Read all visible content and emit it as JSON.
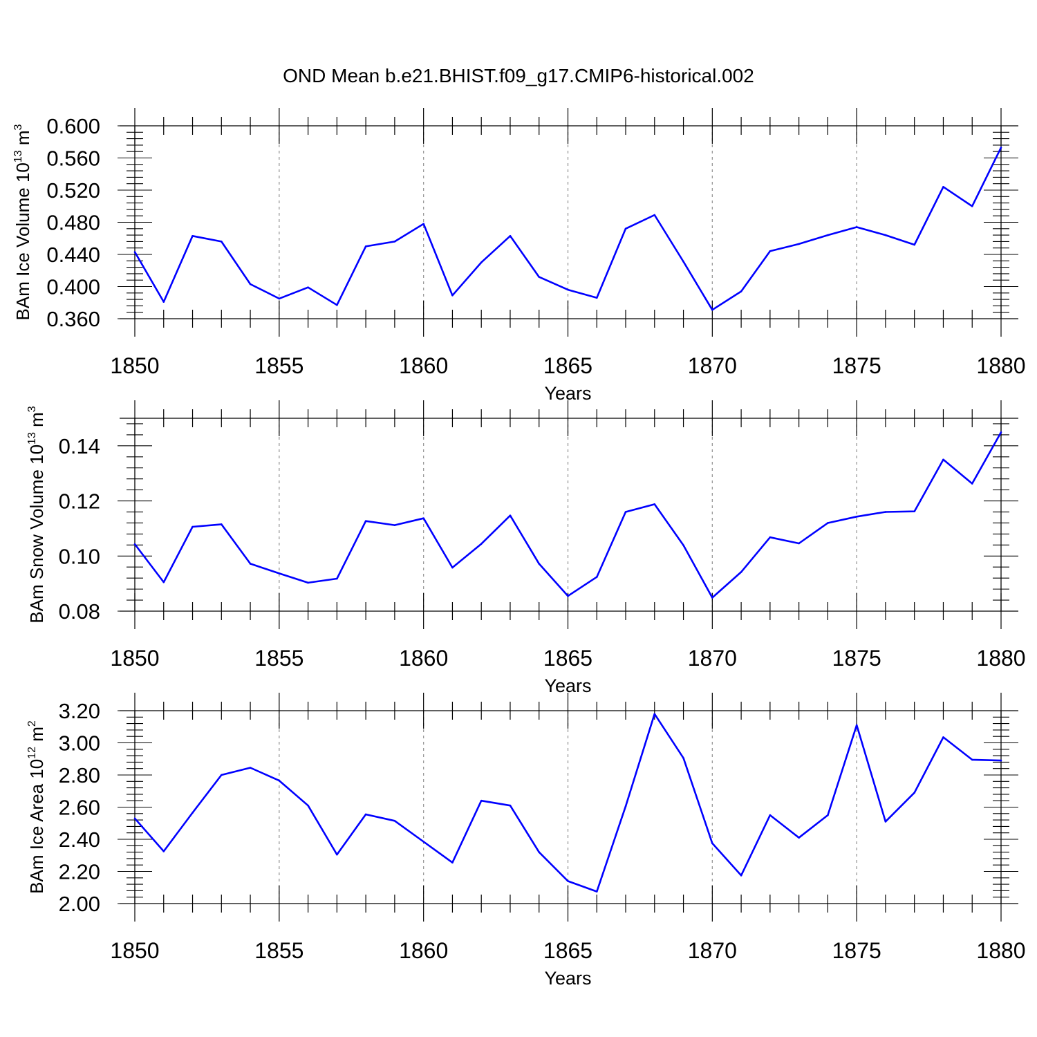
{
  "title": "OND Mean b.e21.BHIST.f09_g17.CMIP6-historical.002",
  "colors": {
    "line": "#0000ff",
    "axis": "#000000",
    "grid": "#999999",
    "background": "#ffffff"
  },
  "chart_data": [
    {
      "type": "line",
      "ylabel": "BAm Ice Volume 10",
      "ylabel_exp": "13",
      "ylabel_unit": " m",
      "ylabel_unit_exp": "3",
      "xlabel": "Years",
      "xlim": [
        1850,
        1880
      ],
      "ylim": [
        0.36,
        0.6
      ],
      "yticks": [
        0.36,
        0.4,
        0.44,
        0.48,
        0.52,
        0.56,
        0.6
      ],
      "ytick_labels": [
        "0.360",
        "0.400",
        "0.440",
        "0.480",
        "0.520",
        "0.560",
        "0.600"
      ],
      "xticks": [
        1850,
        1855,
        1860,
        1865,
        1870,
        1875,
        1880
      ],
      "xtick_labels": [
        "1850",
        "1855",
        "1860",
        "1865",
        "1870",
        "1875",
        "1880"
      ],
      "grid_x": [
        1855,
        1860,
        1865,
        1870,
        1875
      ],
      "x": [
        1850,
        1851,
        1852,
        1853,
        1854,
        1855,
        1856,
        1857,
        1858,
        1859,
        1860,
        1861,
        1862,
        1863,
        1864,
        1865,
        1866,
        1867,
        1868,
        1869,
        1870,
        1871,
        1872,
        1873,
        1874,
        1875,
        1876,
        1877,
        1878,
        1879,
        1880
      ],
      "series": [
        {
          "name": "BAm Ice Volume",
          "values": [
            0.443,
            0.381,
            0.463,
            0.456,
            0.403,
            0.385,
            0.399,
            0.377,
            0.45,
            0.456,
            0.478,
            0.389,
            0.43,
            0.463,
            0.412,
            0.396,
            0.386,
            0.472,
            0.489,
            0.431,
            0.371,
            0.394,
            0.444,
            0.453,
            0.464,
            0.474,
            0.464,
            0.452,
            0.524,
            0.5,
            0.573
          ]
        }
      ]
    },
    {
      "type": "line",
      "ylabel": "BAm Snow Volume 10",
      "ylabel_exp": "13",
      "ylabel_unit": " m",
      "ylabel_unit_exp": "3",
      "xlabel": "Years",
      "xlim": [
        1850,
        1880
      ],
      "ylim": [
        0.08,
        0.15
      ],
      "yticks": [
        0.08,
        0.1,
        0.12,
        0.14
      ],
      "ytick_labels": [
        "0.08",
        "0.10",
        "0.12",
        "0.14"
      ],
      "xticks": [
        1850,
        1855,
        1860,
        1865,
        1870,
        1875,
        1880
      ],
      "xtick_labels": [
        "1850",
        "1855",
        "1860",
        "1865",
        "1870",
        "1875",
        "1880"
      ],
      "grid_x": [
        1855,
        1860,
        1865,
        1870,
        1875
      ],
      "x": [
        1850,
        1851,
        1852,
        1853,
        1854,
        1855,
        1856,
        1857,
        1858,
        1859,
        1860,
        1861,
        1862,
        1863,
        1864,
        1865,
        1866,
        1867,
        1868,
        1869,
        1870,
        1871,
        1872,
        1873,
        1874,
        1875,
        1876,
        1877,
        1878,
        1879,
        1880
      ],
      "series": [
        {
          "name": "BAm Snow Volume",
          "values": [
            0.1043,
            0.0905,
            0.1106,
            0.1115,
            0.0972,
            0.0937,
            0.0903,
            0.0918,
            0.1127,
            0.1112,
            0.1137,
            0.0958,
            0.1044,
            0.1147,
            0.0972,
            0.0855,
            0.0924,
            0.116,
            0.1188,
            0.1039,
            0.0849,
            0.0942,
            0.1068,
            0.1046,
            0.112,
            0.1143,
            0.116,
            0.1162,
            0.135,
            0.1263,
            0.1449
          ]
        }
      ]
    },
    {
      "type": "line",
      "ylabel": "BAm Ice Area 10",
      "ylabel_exp": "12",
      "ylabel_unit": " m",
      "ylabel_unit_exp": "2",
      "xlabel": "Years",
      "xlim": [
        1850,
        1880
      ],
      "ylim": [
        2.0,
        3.2
      ],
      "yticks": [
        2.0,
        2.2,
        2.4,
        2.6,
        2.8,
        3.0,
        3.2
      ],
      "ytick_labels": [
        "2.00",
        "2.20",
        "2.40",
        "2.60",
        "2.80",
        "3.00",
        "3.20"
      ],
      "xticks": [
        1850,
        1855,
        1860,
        1865,
        1870,
        1875,
        1880
      ],
      "xtick_labels": [
        "1850",
        "1855",
        "1860",
        "1865",
        "1870",
        "1875",
        "1880"
      ],
      "grid_x": [
        1855,
        1860,
        1865,
        1870,
        1875
      ],
      "x": [
        1850,
        1851,
        1852,
        1853,
        1854,
        1855,
        1856,
        1857,
        1858,
        1859,
        1860,
        1861,
        1862,
        1863,
        1864,
        1865,
        1866,
        1867,
        1868,
        1869,
        1870,
        1871,
        1872,
        1873,
        1874,
        1875,
        1876,
        1877,
        1878,
        1879,
        1880
      ],
      "series": [
        {
          "name": "BAm Ice Area",
          "values": [
            2.53,
            2.325,
            2.565,
            2.8,
            2.845,
            2.765,
            2.61,
            2.305,
            2.555,
            2.515,
            2.385,
            2.255,
            2.64,
            2.61,
            2.32,
            2.14,
            2.075,
            2.605,
            3.18,
            2.905,
            2.375,
            2.175,
            2.55,
            2.41,
            2.55,
            3.11,
            2.51,
            2.69,
            3.035,
            2.895,
            2.89
          ]
        }
      ]
    }
  ]
}
